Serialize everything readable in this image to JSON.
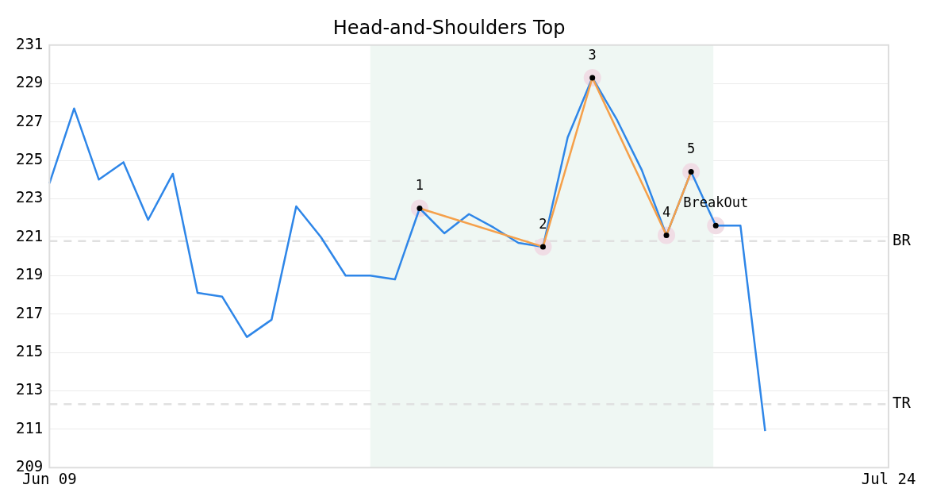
{
  "chart_data": {
    "type": "line",
    "title": "Head-and-Shoulders Top",
    "categories": [
      "Jun 09",
      null,
      null,
      null,
      null,
      null,
      null,
      null,
      null,
      null,
      null,
      null,
      null,
      null,
      null,
      null,
      null,
      null,
      null,
      null,
      null,
      null,
      null,
      null,
      null,
      null,
      null,
      null,
      null,
      null,
      null,
      null,
      null,
      null,
      "Jul 24"
    ],
    "ylim": [
      209,
      231
    ],
    "yticks": [
      209,
      211,
      213,
      215,
      217,
      219,
      221,
      223,
      225,
      227,
      229,
      231
    ],
    "grid": "y",
    "legend": false,
    "series": [
      {
        "color": "#2e86e8",
        "values": [
          223.8,
          227.7,
          224.0,
          224.9,
          221.9,
          224.3,
          218.1,
          217.9,
          215.8,
          216.7,
          222.6,
          221.0,
          219.0,
          219.0,
          218.8,
          222.5,
          221.2,
          222.2,
          221.5,
          220.7,
          220.5,
          226.2,
          229.3,
          227.1,
          224.5,
          221.1,
          224.4,
          221.6,
          221.6,
          210.9,
          null,
          null,
          null,
          null,
          null
        ]
      },
      {
        "color": "#f5a04a",
        "values": [
          null,
          null,
          null,
          null,
          null,
          null,
          null,
          null,
          null,
          null,
          null,
          null,
          null,
          null,
          null,
          222.5,
          null,
          null,
          null,
          null,
          220.5,
          null,
          229.3,
          null,
          null,
          221.1,
          224.4,
          null,
          null,
          null,
          null,
          null,
          null,
          null,
          null
        ]
      },
      {
        "type": "scatter",
        "name": "1",
        "color": "#f0dde5",
        "values": [
          null,
          null,
          null,
          null,
          null,
          null,
          null,
          null,
          null,
          null,
          null,
          null,
          null,
          null,
          null,
          222.5,
          null,
          null,
          null,
          null,
          null,
          null,
          null,
          null,
          null,
          null,
          null,
          null,
          null,
          null,
          null,
          null,
          null,
          null,
          null
        ]
      },
      {
        "type": "scatter",
        "name": "2",
        "color": "#f0dde5",
        "values": [
          null,
          null,
          null,
          null,
          null,
          null,
          null,
          null,
          null,
          null,
          null,
          null,
          null,
          null,
          null,
          null,
          null,
          null,
          null,
          null,
          220.5,
          null,
          null,
          null,
          null,
          null,
          null,
          null,
          null,
          null,
          null,
          null,
          null,
          null,
          null
        ]
      },
      {
        "type": "scatter",
        "name": "3",
        "color": "#f0dde5",
        "values": [
          null,
          null,
          null,
          null,
          null,
          null,
          null,
          null,
          null,
          null,
          null,
          null,
          null,
          null,
          null,
          null,
          null,
          null,
          null,
          null,
          null,
          null,
          229.3,
          null,
          null,
          null,
          null,
          null,
          null,
          null,
          null,
          null,
          null,
          null,
          null
        ]
      },
      {
        "type": "scatter",
        "name": "4",
        "color": "#f0dde5",
        "values": [
          null,
          null,
          null,
          null,
          null,
          null,
          null,
          null,
          null,
          null,
          null,
          null,
          null,
          null,
          null,
          null,
          null,
          null,
          null,
          null,
          null,
          null,
          null,
          null,
          null,
          221.1,
          null,
          null,
          null,
          null,
          null,
          null,
          null,
          null,
          null
        ]
      },
      {
        "type": "scatter",
        "name": "5",
        "color": "#f0dde5",
        "values": [
          null,
          null,
          null,
          null,
          null,
          null,
          null,
          null,
          null,
          null,
          null,
          null,
          null,
          null,
          null,
          null,
          null,
          null,
          null,
          null,
          null,
          null,
          null,
          null,
          null,
          null,
          224.4,
          null,
          null,
          null,
          null,
          null,
          null,
          null,
          null
        ]
      },
      {
        "type": "scatter",
        "name": "BreakOut",
        "color": "#f0dde5",
        "values": [
          null,
          null,
          null,
          null,
          null,
          null,
          null,
          null,
          null,
          null,
          null,
          null,
          null,
          null,
          null,
          null,
          null,
          null,
          null,
          null,
          null,
          null,
          null,
          null,
          null,
          null,
          null,
          221.6,
          null,
          null,
          null,
          null,
          null,
          null,
          null
        ]
      }
    ],
    "ref_lines": [
      {
        "axis": "y",
        "value": 220.8,
        "label": "BR",
        "color": "#e0e0e0",
        "line_style": "dashed"
      },
      {
        "axis": "y",
        "value": 212.3,
        "label": "TR",
        "color": "#e0e0e0",
        "line_style": "dashed"
      }
    ]
  }
}
